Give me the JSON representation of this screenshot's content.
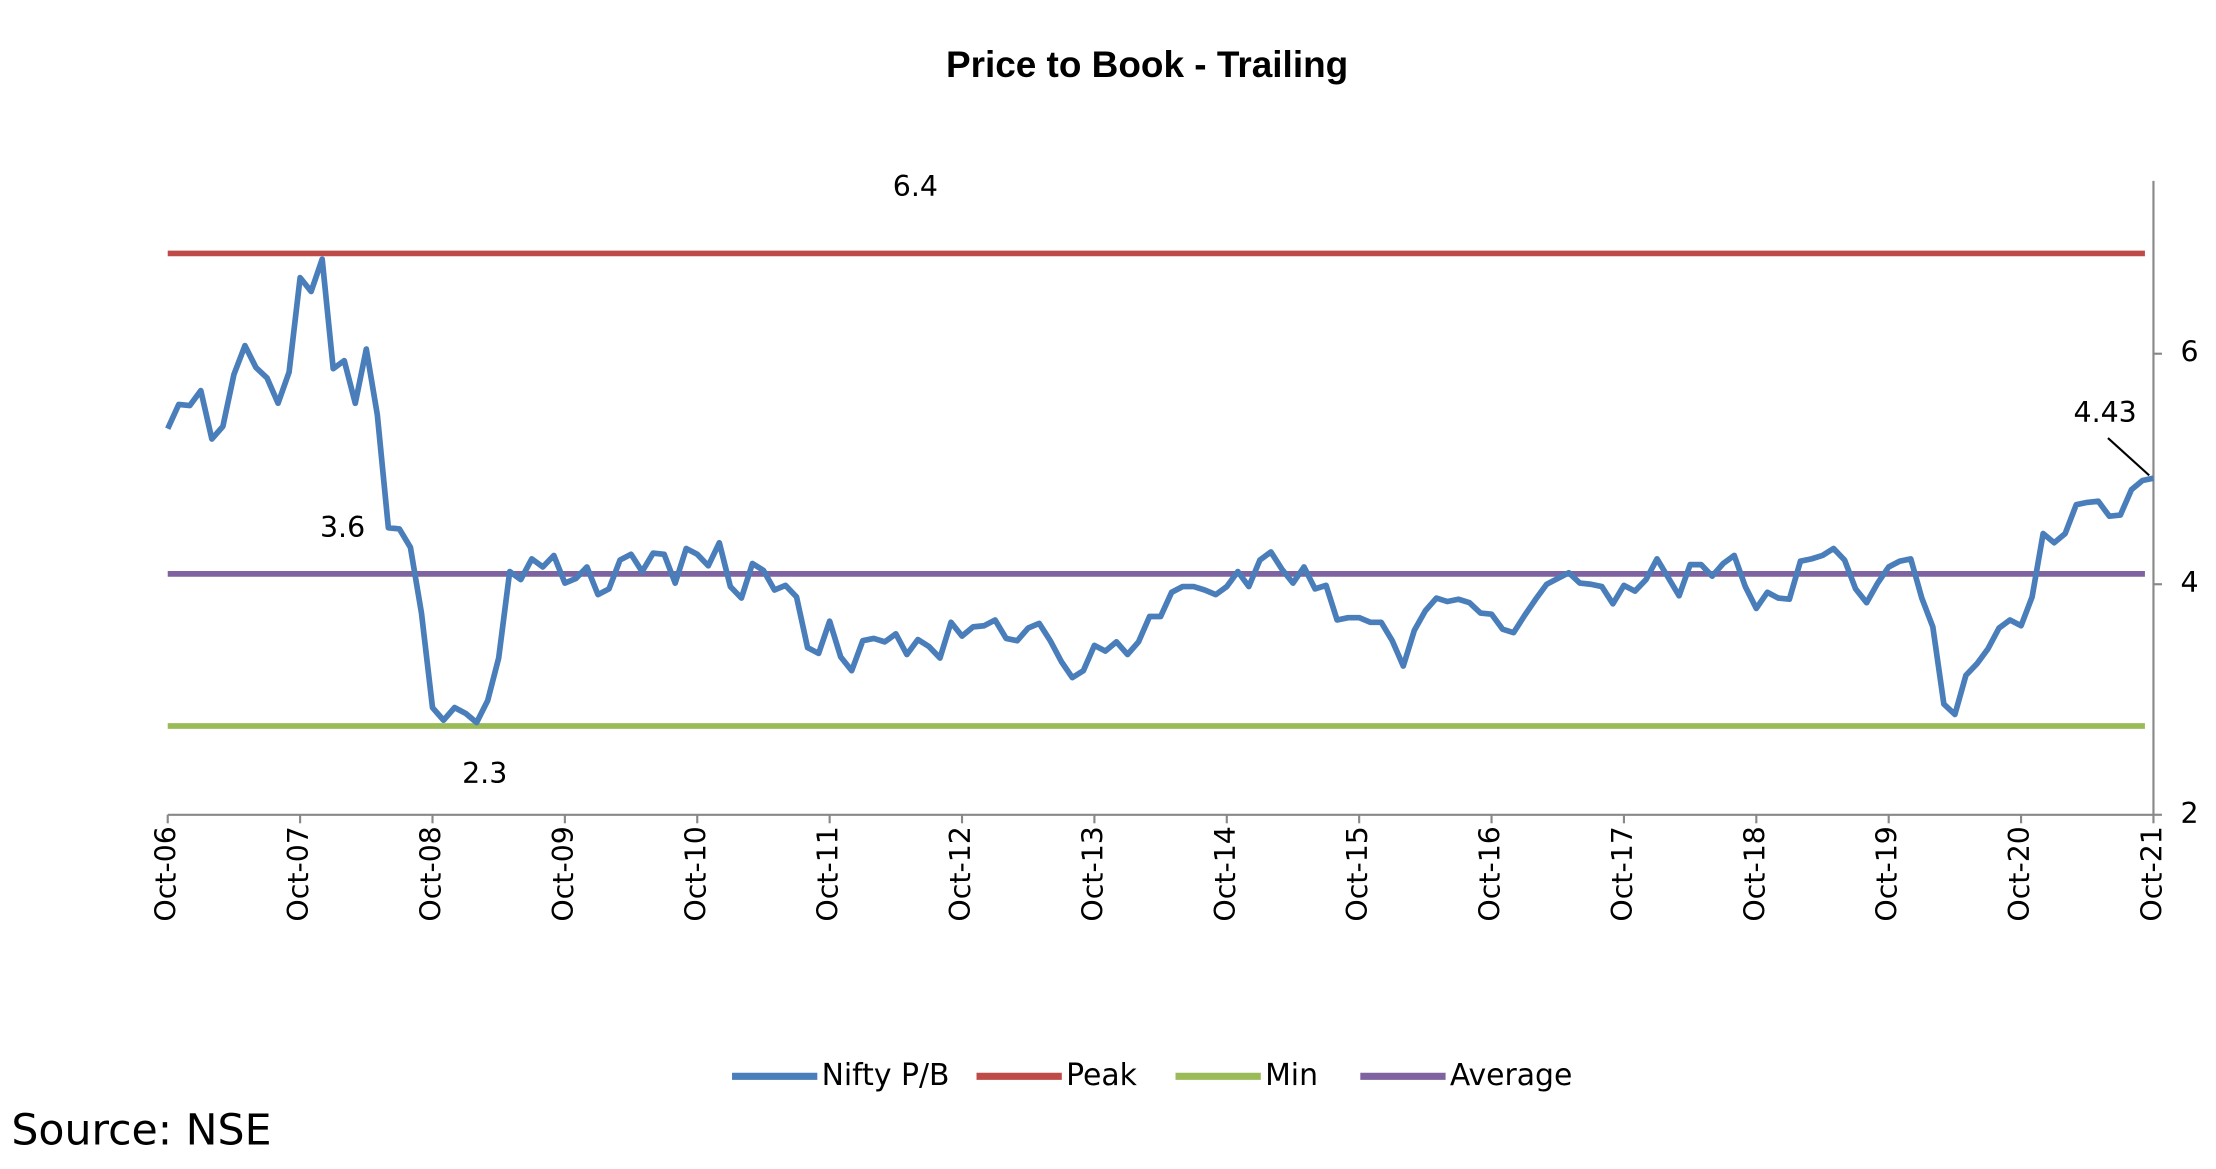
{
  "chart_data": {
    "type": "line",
    "title": "Price to Book - Trailing",
    "categories": [
      "Oct-06",
      null,
      null,
      null,
      null,
      null,
      null,
      null,
      null,
      null,
      null,
      null,
      "Oct-07",
      null,
      null,
      null,
      null,
      null,
      null,
      null,
      null,
      null,
      null,
      null,
      "Oct-08",
      null,
      null,
      null,
      null,
      null,
      null,
      null,
      null,
      null,
      null,
      null,
      "Oct-09",
      null,
      null,
      null,
      null,
      null,
      null,
      null,
      null,
      null,
      null,
      null,
      "Oct-10",
      null,
      null,
      null,
      null,
      null,
      null,
      null,
      null,
      null,
      null,
      null,
      "Oct-11",
      null,
      null,
      null,
      null,
      null,
      null,
      null,
      null,
      null,
      null,
      null,
      "Oct-12",
      null,
      null,
      null,
      null,
      null,
      null,
      null,
      null,
      null,
      null,
      null,
      "Oct-13",
      null,
      null,
      null,
      null,
      null,
      null,
      null,
      null,
      null,
      null,
      null,
      "Oct-14",
      null,
      null,
      null,
      null,
      null,
      null,
      null,
      null,
      null,
      null,
      null,
      "Oct-15",
      null,
      null,
      null,
      null,
      null,
      null,
      null,
      null,
      null,
      null,
      null,
      "Oct-16",
      null,
      null,
      null,
      null,
      null,
      null,
      null,
      null,
      null,
      null,
      null,
      "Oct-17",
      null,
      null,
      null,
      null,
      null,
      null,
      null,
      null,
      null,
      null,
      null,
      "Oct-18",
      null,
      null,
      null,
      null,
      null,
      null,
      null,
      null,
      null,
      null,
      null,
      "Oct-19",
      null,
      null,
      null,
      null,
      null,
      null,
      null,
      null,
      null,
      null,
      null,
      "Oct-20",
      null,
      null,
      null,
      null,
      null,
      null,
      null,
      null,
      null,
      null,
      null,
      "Oct-21"
    ],
    "series": [
      {
        "name": "Nifty P/B",
        "color": "#4a7ebb",
        "values": [
          5.35,
          5.56,
          5.55,
          5.68,
          5.26,
          5.37,
          5.82,
          6.07,
          5.88,
          5.79,
          5.57,
          5.84,
          6.66,
          6.54,
          6.82,
          5.87,
          5.94,
          5.57,
          6.04,
          5.47,
          4.49,
          4.48,
          4.32,
          3.75,
          2.93,
          2.82,
          2.93,
          2.88,
          2.8,
          2.99,
          3.36,
          4.11,
          4.04,
          4.22,
          4.15,
          4.25,
          4.01,
          4.05,
          4.15,
          3.91,
          3.96,
          4.21,
          4.26,
          4.11,
          4.27,
          4.26,
          4.01,
          4.31,
          4.26,
          4.16,
          4.36,
          3.98,
          3.88,
          4.18,
          4.12,
          3.95,
          3.99,
          3.89,
          3.45,
          3.4,
          3.68,
          3.37,
          3.25,
          3.51,
          3.53,
          3.5,
          3.57,
          3.39,
          3.52,
          3.46,
          3.36,
          3.67,
          3.55,
          3.63,
          3.64,
          3.69,
          3.53,
          3.51,
          3.62,
          3.66,
          3.51,
          3.33,
          3.19,
          3.25,
          3.47,
          3.42,
          3.5,
          3.39,
          3.5,
          3.72,
          3.72,
          3.93,
          3.98,
          3.98,
          3.95,
          3.91,
          3.98,
          4.11,
          3.98,
          4.21,
          4.28,
          4.13,
          4.01,
          4.15,
          3.96,
          3.99,
          3.69,
          3.71,
          3.71,
          3.67,
          3.67,
          3.51,
          3.29,
          3.6,
          3.77,
          3.88,
          3.85,
          3.87,
          3.84,
          3.75,
          3.74,
          3.61,
          3.58,
          3.73,
          3.87,
          4.0,
          4.05,
          4.1,
          4.01,
          4.0,
          3.98,
          3.83,
          3.99,
          3.94,
          4.04,
          4.22,
          4.06,
          3.9,
          4.17,
          4.17,
          4.07,
          4.18,
          4.25,
          3.98,
          3.79,
          3.93,
          3.88,
          3.87,
          4.2,
          4.22,
          4.25,
          4.31,
          4.21,
          3.96,
          3.84,
          4.01,
          4.15,
          4.2,
          4.22,
          3.88,
          3.63,
          2.96,
          2.87,
          3.21,
          3.31,
          3.44,
          3.62,
          3.69,
          3.64,
          3.89,
          4.44,
          4.36,
          4.44,
          4.69,
          4.71,
          4.72,
          4.59,
          4.6,
          4.82,
          4.9,
          4.92
        ]
      }
    ],
    "reference_lines": [
      {
        "name": "Peak",
        "color": "#be4b48",
        "value": 6.87
      },
      {
        "name": "Min",
        "color": "#9bbb59",
        "value": 2.77
      },
      {
        "name": "Average",
        "color": "#7f63a1",
        "value": 4.09
      }
    ],
    "annotations": [
      "6.4",
      "3.6",
      "2.3",
      "4.43"
    ],
    "ylim": [
      2,
      7.5
    ],
    "yticks": [
      2,
      4,
      6
    ],
    "source": "Source: NSE"
  }
}
